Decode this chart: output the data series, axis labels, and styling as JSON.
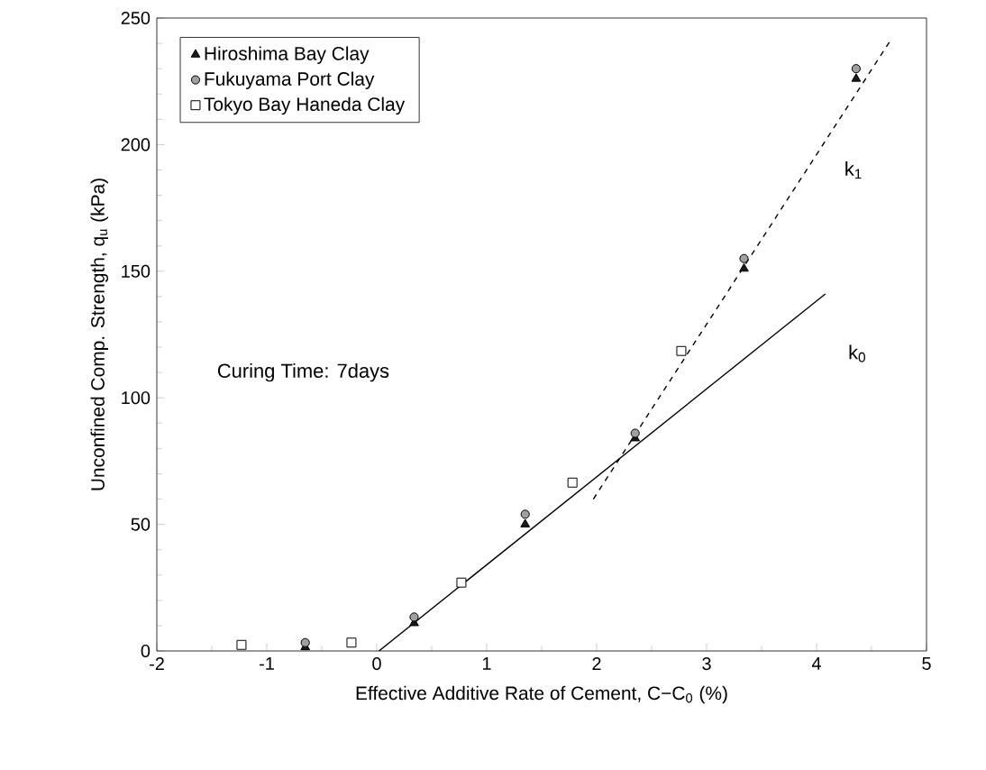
{
  "chart_data": {
    "type": "scatter",
    "xlabel": "Effective Additive Rate of Cement, C−C$_{0}$ (%)",
    "ylabel": "Unconfined Comp. Strength, q$_{u}$ (kPa)",
    "xlim": [
      -2,
      5
    ],
    "ylim": [
      0,
      250
    ],
    "xticks": [
      -2,
      -1,
      0,
      1,
      2,
      3,
      4,
      5
    ],
    "yticks": [
      0,
      50,
      100,
      150,
      200,
      250
    ],
    "grid": false,
    "legend": "top left",
    "series": [
      {
        "name": "Hiroshima Bay Clay",
        "marker": "triangle",
        "color": "#1a1a1a",
        "x": [
          -0.65,
          0.34,
          1.35,
          2.35,
          3.34,
          4.36
        ],
        "values": [
          1.5,
          11,
          50,
          84,
          151,
          226
        ]
      },
      {
        "name": "Fukuyama Port Clay",
        "marker": "circle",
        "color": "#a0a0a0",
        "x": [
          -0.65,
          0.34,
          1.35,
          2.35,
          3.34,
          4.36
        ],
        "values": [
          3.3,
          13.4,
          54,
          86,
          155,
          230
        ]
      },
      {
        "name": "Tokyo Bay Haneda Clay",
        "marker": "square",
        "color": "#ffffff",
        "x": [
          -1.23,
          -0.23,
          0.77,
          1.78,
          2.77
        ],
        "values": [
          2.4,
          3.3,
          27,
          66.5,
          118.5
        ]
      },
      {
        "type": "line",
        "line_style": "solid",
        "color": "#000000",
        "x": [
          0.02,
          4.08
        ],
        "values": [
          0,
          141
        ]
      },
      {
        "type": "line",
        "line_style": "dashed",
        "color": "#000000",
        "x": [
          1.97,
          4.67
        ],
        "values": [
          60,
          241
        ]
      }
    ],
    "annotations": [
      "k$_{1}$",
      "k$_{0}$",
      "Curing Time: 7days"
    ]
  }
}
